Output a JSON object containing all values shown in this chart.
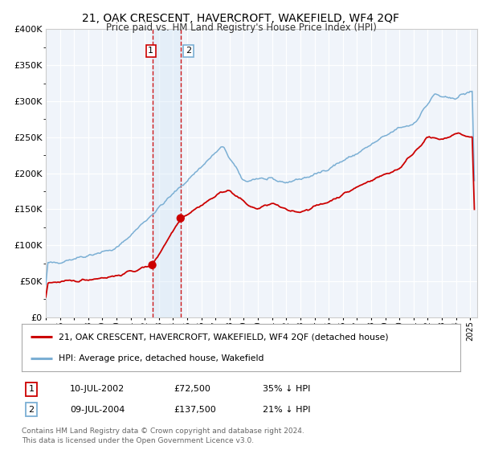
{
  "title": "21, OAK CRESCENT, HAVERCROFT, WAKEFIELD, WF4 2QF",
  "subtitle": "Price paid vs. HM Land Registry's House Price Index (HPI)",
  "legend_property": "21, OAK CRESCENT, HAVERCROFT, WAKEFIELD, WF4 2QF (detached house)",
  "legend_hpi": "HPI: Average price, detached house, Wakefield",
  "sale1_date": "10-JUL-2002",
  "sale1_price": 72500,
  "sale1_label": "35% ↓ HPI",
  "sale2_date": "09-JUL-2004",
  "sale2_price": 137500,
  "sale2_label": "21% ↓ HPI",
  "footer": "Contains HM Land Registry data © Crown copyright and database right 2024.\nThis data is licensed under the Open Government Licence v3.0.",
  "property_color": "#cc0000",
  "hpi_color": "#7bafd4",
  "shade_color": "#d0e4f7",
  "background_color": "#f0f4fa",
  "ylim": [
    0,
    400000
  ],
  "sale1_year": 2002.53,
  "sale2_year": 2004.53
}
